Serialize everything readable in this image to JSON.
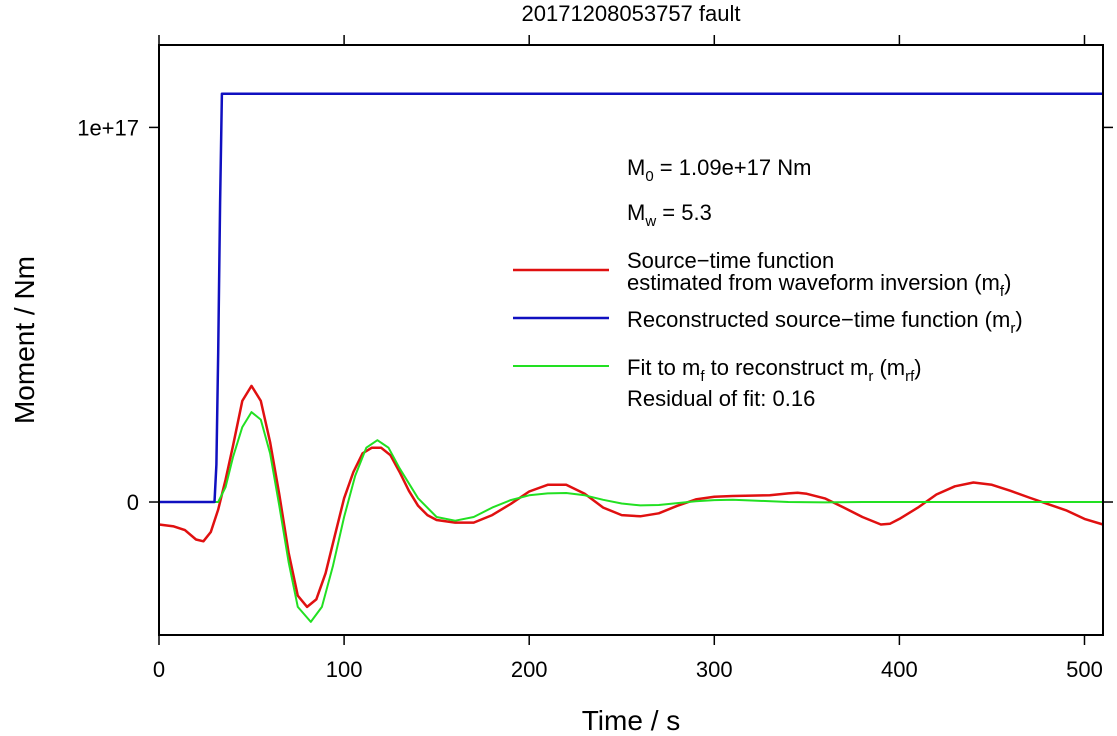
{
  "chart_data": {
    "type": "line",
    "title": "20171208053757 fault",
    "xlabel": "Time / s",
    "ylabel": "Moment / Nm",
    "xlim": [
      0,
      510
    ],
    "ylim": [
      -3.55e+16,
      1.22e+17
    ],
    "x_ticks": [
      {
        "value": 0,
        "label": "0"
      },
      {
        "value": 100,
        "label": "100"
      },
      {
        "value": 200,
        "label": "200"
      },
      {
        "value": 300,
        "label": "300"
      },
      {
        "value": 400,
        "label": "400"
      },
      {
        "value": 500,
        "label": "500"
      }
    ],
    "y_ticks": [
      {
        "value": 0,
        "label": "0"
      },
      {
        "value": 1e+17,
        "label": "1e+17"
      }
    ],
    "grid": false,
    "legend_position": "right",
    "annotations": {
      "m0": {
        "main": "M",
        "sub": "0",
        "rest": " = 1.09e+17 Nm"
      },
      "mw": {
        "main": "M",
        "sub": "w",
        "rest": " = 5.3"
      },
      "residual": "Residual of fit: 0.16"
    },
    "legend": [
      {
        "key": "red",
        "color": "#e01010",
        "lines": [
          [
            {
              "t": "Source−time function"
            }
          ],
          [
            {
              "t": "estimated from waveform inversion (m"
            },
            {
              "t": "f",
              "sub": true
            },
            {
              "t": ")"
            }
          ]
        ]
      },
      {
        "key": "blue",
        "color": "#1010c0",
        "lines": [
          [
            {
              "t": "Reconstructed source−time function (m"
            },
            {
              "t": "r",
              "sub": true
            },
            {
              "t": ")"
            }
          ]
        ]
      },
      {
        "key": "green",
        "color": "#22e022",
        "lines": [
          [
            {
              "t": "Fit to m"
            },
            {
              "t": "f",
              "sub": true
            },
            {
              "t": " to reconstruct m"
            },
            {
              "t": "r",
              "sub": true
            },
            {
              "t": " (m"
            },
            {
              "t": "rf",
              "sub": true
            },
            {
              "t": ")"
            }
          ]
        ]
      }
    ],
    "series": [
      {
        "key": "red",
        "color": "#e01010",
        "stroke_width": 2.5,
        "points": [
          [
            0,
            -6000000000000000.0
          ],
          [
            8,
            -6500000000000000.0
          ],
          [
            14,
            -7500000000000000.0
          ],
          [
            20,
            -1e+16
          ],
          [
            24,
            -1.05e+16
          ],
          [
            28,
            -8000000000000000.0
          ],
          [
            32,
            -2000000000000000.0
          ],
          [
            36,
            6000000000000000.0
          ],
          [
            40,
            1.5e+16
          ],
          [
            45,
            2.7e+16
          ],
          [
            50,
            3.1e+16
          ],
          [
            55,
            2.7e+16
          ],
          [
            60,
            1.6e+16
          ],
          [
            65,
            2000000000000000.0
          ],
          [
            70,
            -1.35e+16
          ],
          [
            75,
            -2.5e+16
          ],
          [
            80,
            -2.8e+16
          ],
          [
            85,
            -2.6e+16
          ],
          [
            90,
            -1.9e+16
          ],
          [
            95,
            -9000000000000000.0
          ],
          [
            100,
            1000000000000000.0
          ],
          [
            105,
            8000000000000000.0
          ],
          [
            110,
            1.3e+16
          ],
          [
            115,
            1.45e+16
          ],
          [
            120,
            1.45e+16
          ],
          [
            125,
            1.25e+16
          ],
          [
            130,
            8000000000000000.0
          ],
          [
            135,
            3000000000000000.0
          ],
          [
            140,
            -1000000000000000.0
          ],
          [
            145,
            -3500000000000000.0
          ],
          [
            150,
            -4800000000000000.0
          ],
          [
            160,
            -5500000000000000.0
          ],
          [
            170,
            -5500000000000000.0
          ],
          [
            180,
            -3500000000000000.0
          ],
          [
            190,
            -500000000000000.0
          ],
          [
            200,
            2800000000000000.0
          ],
          [
            210,
            4600000000000000.0
          ],
          [
            220,
            4600000000000000.0
          ],
          [
            230,
            2200000000000000.0
          ],
          [
            240,
            -1500000000000000.0
          ],
          [
            250,
            -3500000000000000.0
          ],
          [
            260,
            -3800000000000000.0
          ],
          [
            270,
            -3000000000000000.0
          ],
          [
            280,
            -1000000000000000.0
          ],
          [
            290,
            700000000000000.0
          ],
          [
            300,
            1400000000000000.0
          ],
          [
            310,
            1600000000000000.0
          ],
          [
            320,
            1700000000000000.0
          ],
          [
            330,
            1800000000000000.0
          ],
          [
            340,
            2300000000000000.0
          ],
          [
            345,
            2500000000000000.0
          ],
          [
            350,
            2200000000000000.0
          ],
          [
            360,
            900000000000000.0
          ],
          [
            370,
            -1500000000000000.0
          ],
          [
            380,
            -4000000000000000.0
          ],
          [
            390,
            -6000000000000000.0
          ],
          [
            395,
            -5800000000000000.0
          ],
          [
            400,
            -4500000000000000.0
          ],
          [
            410,
            -1500000000000000.0
          ],
          [
            420,
            2000000000000000.0
          ],
          [
            430,
            4200000000000000.0
          ],
          [
            440,
            5200000000000000.0
          ],
          [
            450,
            4600000000000000.0
          ],
          [
            460,
            3000000000000000.0
          ],
          [
            470,
            1200000000000000.0
          ],
          [
            480,
            -500000000000000.0
          ],
          [
            490,
            -2200000000000000.0
          ],
          [
            500,
            -4500000000000000.0
          ],
          [
            510,
            -6000000000000000.0
          ]
        ]
      },
      {
        "key": "green",
        "color": "#22e022",
        "stroke_width": 2,
        "points": [
          [
            0,
            0
          ],
          [
            32,
            0
          ],
          [
            36,
            4000000000000000.0
          ],
          [
            40,
            1.2e+16
          ],
          [
            45,
            2e+16
          ],
          [
            50,
            2.4e+16
          ],
          [
            55,
            2.2e+16
          ],
          [
            60,
            1.3e+16
          ],
          [
            65,
            -1000000000000000.0
          ],
          [
            70,
            -1.6e+16
          ],
          [
            75,
            -2.8e+16
          ],
          [
            82,
            -3.2e+16
          ],
          [
            88,
            -2.8e+16
          ],
          [
            94,
            -1.7e+16
          ],
          [
            100,
            -4000000000000000.0
          ],
          [
            106,
            7000000000000000.0
          ],
          [
            112,
            1.45e+16
          ],
          [
            118,
            1.65e+16
          ],
          [
            124,
            1.45e+16
          ],
          [
            130,
            9000000000000000.0
          ],
          [
            140,
            1000000000000000.0
          ],
          [
            150,
            -4000000000000000.0
          ],
          [
            160,
            -5000000000000000.0
          ],
          [
            170,
            -4000000000000000.0
          ],
          [
            180,
            -1500000000000000.0
          ],
          [
            190,
            500000000000000.0
          ],
          [
            200,
            1800000000000000.0
          ],
          [
            210,
            2300000000000000.0
          ],
          [
            220,
            2400000000000000.0
          ],
          [
            230,
            1800000000000000.0
          ],
          [
            240,
            600000000000000.0
          ],
          [
            250,
            -400000000000000.0
          ],
          [
            260,
            -900000000000000.0
          ],
          [
            270,
            -800000000000000.0
          ],
          [
            280,
            -300000000000000.0
          ],
          [
            290,
            200000000000000.0
          ],
          [
            300,
            500000000000000.0
          ],
          [
            310,
            600000000000000.0
          ],
          [
            320,
            400000000000000.0
          ],
          [
            340,
            0
          ],
          [
            360,
            -100000000000000.0
          ],
          [
            380,
            0
          ],
          [
            510,
            0
          ]
        ]
      },
      {
        "key": "blue",
        "color": "#1010c0",
        "stroke_width": 2.5,
        "points": [
          [
            0,
            0
          ],
          [
            30,
            0
          ],
          [
            31,
            1e+16
          ],
          [
            32,
            4e+16
          ],
          [
            33,
            8e+16
          ],
          [
            34,
            1.09e+17
          ],
          [
            510,
            1.09e+17
          ]
        ]
      }
    ]
  }
}
